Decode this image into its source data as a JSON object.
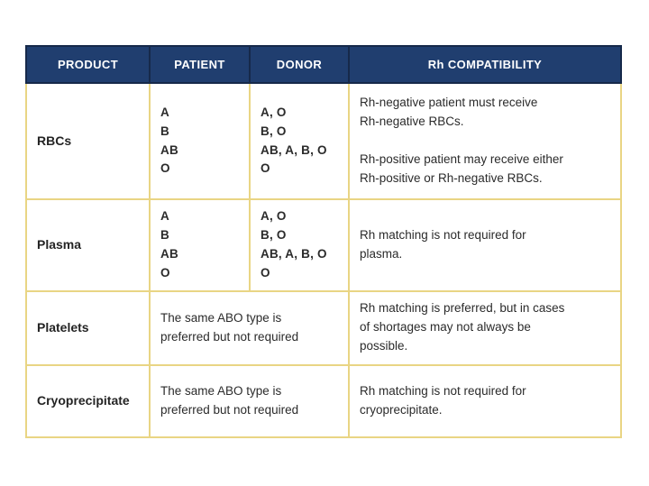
{
  "colors": {
    "header_bg": "#203e6f",
    "header_border": "#16294a",
    "table_border": "#e9d584",
    "text": "#2b2b2b"
  },
  "header": {
    "product": "PRODUCT",
    "patient": "PATIENT",
    "donor": "DONOR",
    "rh": "Rh COMPATIBILITY"
  },
  "rows": [
    {
      "product": "RBCs",
      "patient": "A\nB\nAB\nO",
      "donor": "A, O\nB, O\nAB, A, B, O\nO",
      "rh": "Rh-negative patient must receive\nRh-negative RBCs.\n\nRh-positive patient may receive either\nRh-positive or Rh-negative RBCs."
    },
    {
      "product": "Plasma",
      "patient": "A\nB\nAB\nO",
      "donor": "A, O\nB, O\nAB, A, B, O\nO",
      "rh": "Rh matching is not required for\nplasma."
    },
    {
      "product": "Platelets",
      "abo": "The same ABO type is\npreferred but not required",
      "rh": "Rh matching is preferred, but in cases\nof shortages may not always be\npossible."
    },
    {
      "product": "Cryoprecipitate",
      "abo": "The same ABO type is\npreferred but not required",
      "rh": "Rh matching is not required for\ncryoprecipitate."
    }
  ]
}
